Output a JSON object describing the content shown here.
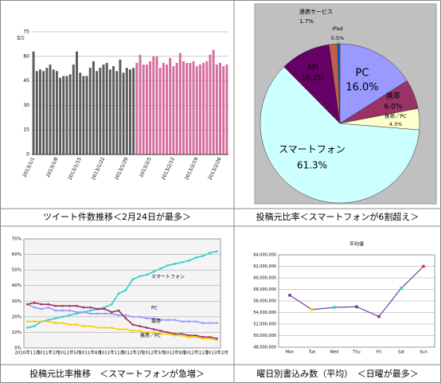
{
  "chart_data": [
    {
      "type": "bar",
      "caption": "ツイート件数推移＜2月24日が最多＞",
      "y_unit": "百万",
      "categories": [
        "2013/1/1",
        null,
        null,
        null,
        null,
        null,
        null,
        "2013/1/8",
        null,
        null,
        null,
        null,
        null,
        null,
        "2013/1/15",
        null,
        null,
        null,
        null,
        null,
        null,
        "2013/1/22",
        null,
        null,
        null,
        null,
        null,
        null,
        "2013/1/29",
        null,
        null,
        null,
        null,
        null,
        null,
        "2013/2/5",
        null,
        null,
        null,
        null,
        null,
        null,
        "2013/2/12",
        null,
        null,
        null,
        null,
        null,
        null,
        "2013/2/19",
        null,
        null,
        null,
        null,
        null,
        null,
        "2013/2/26",
        null,
        null
      ],
      "values": [
        63,
        51,
        52,
        51,
        53,
        55,
        52,
        51,
        47,
        48,
        48,
        49,
        55,
        63,
        50,
        48,
        48,
        53,
        57,
        51,
        53,
        55,
        56,
        52,
        54,
        51,
        58,
        50,
        53,
        52,
        53,
        56,
        61,
        55,
        55,
        57,
        60,
        60,
        53,
        56,
        55,
        59,
        54,
        56,
        62,
        57,
        56,
        56,
        57,
        54,
        55,
        56,
        57,
        61,
        64,
        55,
        56,
        54,
        55
      ],
      "colors": [
        "#5b5b5b",
        "#5b5b5b",
        "#5b5b5b",
        "#5b5b5b",
        "#5b5b5b",
        "#5b5b5b",
        "#5b5b5b",
        "#5b5b5b",
        "#5b5b5b",
        "#5b5b5b",
        "#5b5b5b",
        "#5b5b5b",
        "#5b5b5b",
        "#5b5b5b",
        "#5b5b5b",
        "#5b5b5b",
        "#5b5b5b",
        "#5b5b5b",
        "#5b5b5b",
        "#5b5b5b",
        "#5b5b5b",
        "#5b5b5b",
        "#5b5b5b",
        "#5b5b5b",
        "#5b5b5b",
        "#5b5b5b",
        "#5b5b5b",
        "#5b5b5b",
        "#5b5b5b",
        "#5b5b5b",
        "#5b5b5b",
        "#d46c9c",
        "#d46c9c",
        "#d46c9c",
        "#d46c9c",
        "#d46c9c",
        "#d46c9c",
        "#d46c9c",
        "#d46c9c",
        "#d46c9c",
        "#d46c9c",
        "#d46c9c",
        "#d46c9c",
        "#d46c9c",
        "#d46c9c",
        "#d46c9c",
        "#d46c9c",
        "#d46c9c",
        "#d46c9c",
        "#d46c9c",
        "#d46c9c",
        "#d46c9c",
        "#d46c9c",
        "#d46c9c",
        "#d46c9c",
        "#d46c9c",
        "#d46c9c",
        "#d46c9c",
        "#d46c9c"
      ],
      "ylim": [
        0,
        75
      ],
      "yticks": [
        0,
        15,
        30,
        45,
        60,
        75
      ],
      "grid": true
    },
    {
      "type": "pie",
      "caption": "投稿元比率＜スマートフォンが6割超え＞",
      "categories": [
        "PC",
        "携帯",
        "携帯／PC",
        "スマートフォン",
        "API",
        "連携サービス",
        "iPad"
      ],
      "values": [
        16.0,
        6.0,
        4.3,
        61.3,
        10.2,
        1.7,
        0.5
      ],
      "value_labels": [
        "16.0%",
        "6.0%",
        "4.3%",
        "61.3%",
        "10.2%",
        "1.7%",
        "0.5%"
      ],
      "colors": [
        "#9999ff",
        "#993366",
        "#ffffcc",
        "#ccffff",
        "#660066",
        "#c0604a",
        "#0066cc"
      ]
    },
    {
      "type": "line",
      "caption": "投稿元比率推移　＜スマートフォンが急増＞",
      "categories": [
        "2010年11月",
        null,
        null,
        "2011年2月",
        null,
        null,
        "2011年5月",
        null,
        null,
        "2011年8月",
        null,
        null,
        "2011年11月",
        null,
        null,
        "2012年2月",
        null,
        null,
        "2012年5月",
        null,
        null,
        "2012年8月",
        null,
        null,
        "2012年11月",
        null,
        null,
        "2013年2月"
      ],
      "series": [
        {
          "name": "スマートフォン",
          "color": "#33cccc",
          "values": [
            13,
            14,
            17,
            18,
            19,
            20,
            21,
            22,
            23,
            24,
            25,
            26,
            28,
            35,
            37,
            44,
            46,
            47,
            49,
            51,
            53,
            54,
            55,
            56,
            58,
            59,
            61,
            62
          ]
        },
        {
          "name": "PC",
          "color": "#9999ff",
          "values": [
            28,
            26,
            25,
            26,
            24,
            24,
            24,
            23,
            23,
            22,
            22,
            22,
            22,
            21,
            21,
            20,
            20,
            19,
            19,
            18,
            18,
            18,
            17,
            17,
            17,
            16,
            16,
            16
          ]
        },
        {
          "name": "携帯",
          "color": "#993366",
          "values": [
            28,
            29,
            28,
            28,
            27,
            27,
            27,
            27,
            26,
            26,
            25,
            25,
            23,
            24,
            19,
            15,
            14,
            13,
            12,
            11,
            10,
            9,
            9,
            8,
            8,
            7,
            7,
            6
          ]
        },
        {
          "name": "携帯／PC",
          "color": "#ffcc00",
          "values": [
            17,
            17,
            17,
            17,
            16,
            16,
            15,
            15,
            14,
            14,
            13,
            13,
            13,
            12,
            12,
            11,
            11,
            10,
            10,
            9,
            9,
            8,
            8,
            7,
            7,
            6,
            6,
            5
          ]
        }
      ],
      "ylim": [
        0,
        70
      ],
      "yticks": [
        {
          "value": 0,
          "label": "0%"
        },
        {
          "value": 10,
          "label": "10%"
        },
        {
          "value": 20,
          "label": "20%"
        },
        {
          "value": 30,
          "label": "30%"
        },
        {
          "value": 40,
          "label": "40%"
        },
        {
          "value": 50,
          "label": "50%"
        },
        {
          "value": 60,
          "label": "60%"
        },
        {
          "value": 70,
          "label": "70%"
        }
      ],
      "grid": true
    },
    {
      "type": "line",
      "caption": "曜日別書込み数（平均）　＜日曜が最多＞",
      "title": "平均値",
      "categories": [
        "Mon",
        "Tue",
        "Wed",
        "Thu",
        "Fri",
        "Sat",
        "Sun"
      ],
      "values": [
        57000000,
        54500000,
        54900000,
        55000000,
        53300000,
        58200000,
        62000000
      ],
      "color": "#7040a0",
      "marker_colors": [
        "#7040a0",
        "#ffcc00",
        "#33cccc",
        "#7040a0",
        "#993366",
        "#33cccc",
        "#ff3333"
      ],
      "ylim": [
        48000000,
        64000000
      ],
      "yticks": [
        {
          "value": 48000000,
          "label": "48,000,000"
        },
        {
          "value": 50000000,
          "label": "50,000,000"
        },
        {
          "value": 52000000,
          "label": "52,000,000"
        },
        {
          "value": 54000000,
          "label": "54,000,000"
        },
        {
          "value": 56000000,
          "label": "56,000,000"
        },
        {
          "value": 58000000,
          "label": "58,000,000"
        },
        {
          "value": 60000000,
          "label": "60,000,000"
        },
        {
          "value": 62000000,
          "label": "62,000,000"
        },
        {
          "value": 64000000,
          "label": "64,000,000"
        }
      ],
      "grid": true
    }
  ]
}
